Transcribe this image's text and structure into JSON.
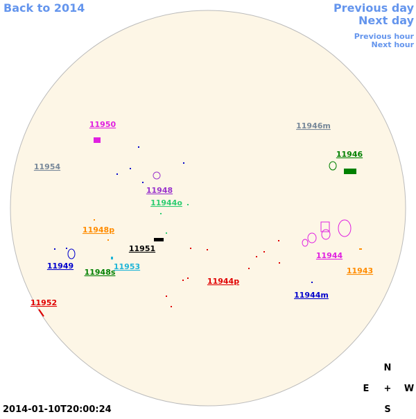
{
  "nav": {
    "back": "Back to 2014",
    "previous_day": "Previous day",
    "next_day": "Next day",
    "previous_hour": "Previous hour",
    "next_hour": "Next hour"
  },
  "regions": [
    {
      "label": "11950",
      "color": "#e020e0"
    },
    {
      "label": "11946m",
      "color": "#778899"
    },
    {
      "label": "11946",
      "color": "#008000"
    },
    {
      "label": "11954",
      "color": "#778899"
    },
    {
      "label": "11948",
      "color": "#9932cc"
    },
    {
      "label": "11944o",
      "color": "#2ecc71"
    },
    {
      "label": "11948p",
      "color": "#ff8c00"
    },
    {
      "label": "11951",
      "color": "#000000"
    },
    {
      "label": "11944",
      "color": "#e020e0"
    },
    {
      "label": "11949",
      "color": "#0000cc"
    },
    {
      "label": "11953",
      "color": "#1fb5d8"
    },
    {
      "label": "11948s",
      "color": "#008000"
    },
    {
      "label": "11943",
      "color": "#ff8c00"
    },
    {
      "label": "11944p",
      "color": "#e00000"
    },
    {
      "label": "11944m",
      "color": "#0000cc"
    },
    {
      "label": "11952",
      "color": "#e00000"
    }
  ],
  "compass": {
    "north": "N",
    "east": "E",
    "center": "+",
    "west": "W",
    "south": "S"
  },
  "timestamp": "2014-01-10T20:00:24"
}
